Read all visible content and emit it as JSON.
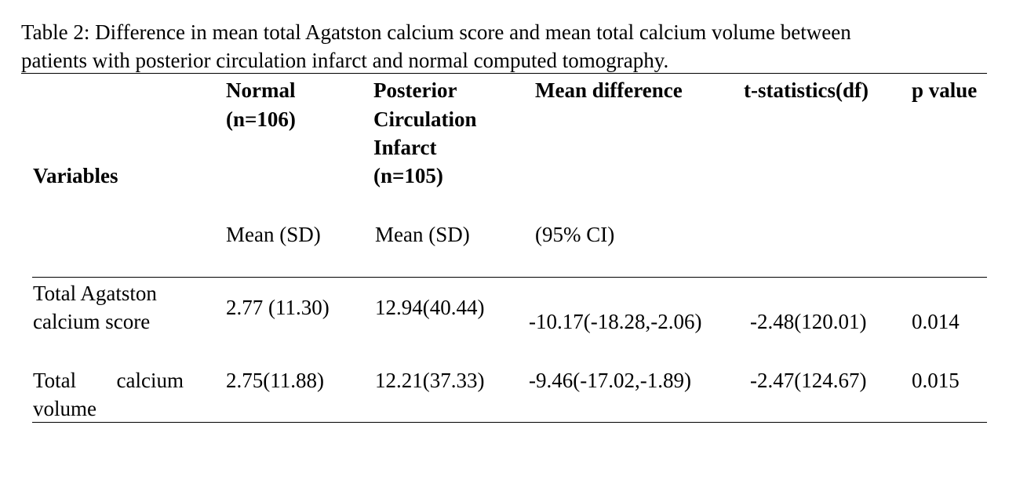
{
  "caption": {
    "line1": "Table 2: Difference in mean total Agatston calcium score and mean total calcium volume between",
    "line2": "patients with posterior circulation infarct and normal computed tomography."
  },
  "table": {
    "headers": {
      "variables": "Variables",
      "normal": [
        "Normal",
        "(n=106)"
      ],
      "posterior": [
        "Posterior",
        "Circulation",
        "Infarct",
        "(n=105)"
      ],
      "mean_difference": "Mean difference",
      "t_statistics": "t-statistics(df)",
      "p_value": "p value"
    },
    "subheaders": {
      "normal": "Mean (SD)",
      "posterior": "Mean (SD)",
      "mean_difference": "(95% CI)"
    },
    "rows": [
      {
        "variable": [
          "Total Agatston",
          "calcium score"
        ],
        "normal": "2.77 (11.30)",
        "posterior": "12.94(40.44)",
        "mean_difference": "-10.17(-18.28,-2.06)",
        "t_statistics": "-2.48(120.01)",
        "p_value": "0.014"
      },
      {
        "variable": [
          "Total",
          "calcium",
          "volume"
        ],
        "normal": "2.75(11.88)",
        "posterior": "12.21(37.33)",
        "mean_difference": "-9.46(-17.02,-1.89)",
        "t_statistics": "-2.47(124.67)",
        "p_value": "0.015"
      }
    ]
  }
}
